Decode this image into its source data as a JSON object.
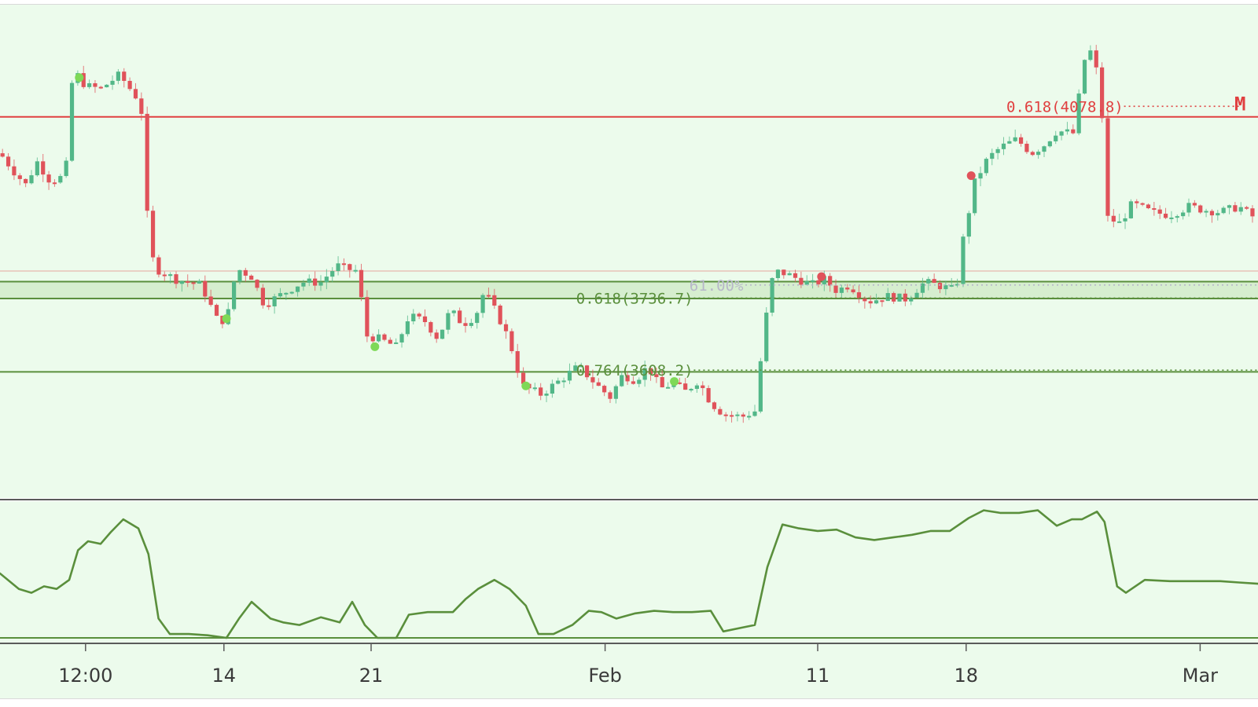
{
  "chart_data": [
    {
      "type": "candlestick",
      "colors": {
        "background": "#ecfbec",
        "up": "#52b788",
        "down": "#e0525a",
        "resistance": "#e04040",
        "support": "#5a8f3c",
        "zone_fill": "#cfe9c6",
        "marker_green": "#7ed957",
        "marker_red": "#e0525a"
      },
      "ylim": [
        3380,
        4260
      ],
      "x_ticks": [
        {
          "label": "12:00",
          "t": 0.068
        },
        {
          "label": "14",
          "t": 0.178
        },
        {
          "label": "21",
          "t": 0.295
        },
        {
          "label": "Feb",
          "t": 0.481
        },
        {
          "label": "11",
          "t": 0.65
        },
        {
          "label": "18",
          "t": 0.768
        },
        {
          "label": "Mar",
          "t": 0.954
        }
      ],
      "close_path": [
        [
          0.0,
          3995
        ],
        [
          0.012,
          3960
        ],
        [
          0.022,
          3935
        ],
        [
          0.028,
          3985
        ],
        [
          0.04,
          3945
        ],
        [
          0.052,
          3955
        ],
        [
          0.058,
          4145
        ],
        [
          0.068,
          4115
        ],
        [
          0.08,
          4110
        ],
        [
          0.095,
          4135
        ],
        [
          0.105,
          4105
        ],
        [
          0.112,
          4085
        ],
        [
          0.118,
          3845
        ],
        [
          0.123,
          3790
        ],
        [
          0.14,
          3770
        ],
        [
          0.16,
          3760
        ],
        [
          0.172,
          3700
        ],
        [
          0.18,
          3695
        ],
        [
          0.188,
          3790
        ],
        [
          0.2,
          3775
        ],
        [
          0.21,
          3725
        ],
        [
          0.225,
          3745
        ],
        [
          0.24,
          3765
        ],
        [
          0.255,
          3765
        ],
        [
          0.268,
          3795
        ],
        [
          0.272,
          3790
        ],
        [
          0.285,
          3785
        ],
        [
          0.29,
          3670
        ],
        [
          0.3,
          3665
        ],
        [
          0.315,
          3650
        ],
        [
          0.325,
          3705
        ],
        [
          0.338,
          3695
        ],
        [
          0.348,
          3665
        ],
        [
          0.358,
          3715
        ],
        [
          0.368,
          3690
        ],
        [
          0.378,
          3705
        ],
        [
          0.385,
          3750
        ],
        [
          0.398,
          3695
        ],
        [
          0.405,
          3660
        ],
        [
          0.415,
          3580
        ],
        [
          0.43,
          3565
        ],
        [
          0.445,
          3590
        ],
        [
          0.46,
          3615
        ],
        [
          0.475,
          3580
        ],
        [
          0.485,
          3560
        ],
        [
          0.495,
          3600
        ],
        [
          0.505,
          3590
        ],
        [
          0.515,
          3615
        ],
        [
          0.525,
          3575
        ],
        [
          0.535,
          3585
        ],
        [
          0.545,
          3570
        ],
        [
          0.555,
          3590
        ],
        [
          0.565,
          3550
        ],
        [
          0.575,
          3530
        ],
        [
          0.59,
          3525
        ],
        [
          0.6,
          3535
        ],
        [
          0.608,
          3690
        ],
        [
          0.615,
          3785
        ],
        [
          0.625,
          3780
        ],
        [
          0.635,
          3770
        ],
        [
          0.645,
          3760
        ],
        [
          0.655,
          3770
        ],
        [
          0.665,
          3750
        ],
        [
          0.675,
          3760
        ],
        [
          0.69,
          3730
        ],
        [
          0.705,
          3740
        ],
        [
          0.72,
          3735
        ],
        [
          0.735,
          3765
        ],
        [
          0.745,
          3760
        ],
        [
          0.76,
          3750
        ],
        [
          0.765,
          3835
        ],
        [
          0.775,
          3945
        ],
        [
          0.785,
          3985
        ],
        [
          0.795,
          4005
        ],
        [
          0.808,
          4020
        ],
        [
          0.82,
          3995
        ],
        [
          0.83,
          4010
        ],
        [
          0.84,
          4035
        ],
        [
          0.855,
          4030
        ],
        [
          0.86,
          4155
        ],
        [
          0.868,
          4180
        ],
        [
          0.875,
          4105
        ],
        [
          0.88,
          3880
        ],
        [
          0.89,
          3870
        ],
        [
          0.9,
          3905
        ],
        [
          0.915,
          3890
        ],
        [
          0.93,
          3885
        ],
        [
          0.945,
          3900
        ],
        [
          0.955,
          3895
        ],
        [
          0.97,
          3890
        ],
        [
          0.985,
          3900
        ],
        [
          1.0,
          3875
        ]
      ],
      "signal_markers": [
        {
          "t": 0.063,
          "price": 4130,
          "kind": "buy"
        },
        {
          "t": 0.18,
          "price": 3700,
          "kind": "buy"
        },
        {
          "t": 0.298,
          "price": 3650,
          "kind": "buy"
        },
        {
          "t": 0.418,
          "price": 3580,
          "kind": "buy"
        },
        {
          "t": 0.536,
          "price": 3588,
          "kind": "buy"
        },
        {
          "t": 0.653,
          "price": 3775,
          "kind": "sell"
        },
        {
          "t": 0.772,
          "price": 3955,
          "kind": "sell"
        }
      ],
      "levels": [
        {
          "name": "resistance",
          "price": 4060,
          "style": "solid",
          "color_key": "resistance"
        },
        {
          "name": "zone_top",
          "price": 3766,
          "style": "solid",
          "color_key": "support"
        },
        {
          "name": "zone_bottom",
          "price": 3736,
          "style": "solid",
          "color_key": "support"
        },
        {
          "name": "support",
          "price": 3605,
          "style": "solid",
          "color_key": "support"
        },
        {
          "name": "thin_ref",
          "price": 3785,
          "style": "thin",
          "color_key": "resistance"
        }
      ],
      "annotations": [
        {
          "name": "fib-0618-upper",
          "text": "0.618(4078.8)",
          "price": 4078.8,
          "t_start": 0.8,
          "t_end": 0.985,
          "color_key": "resistance"
        },
        {
          "name": "fib-0618-lower",
          "text": "0.618(3736.7)",
          "price": 3736.7,
          "t_start": 0.458,
          "t_end": 1.0,
          "color_key": "support"
        },
        {
          "name": "fib-0764",
          "text": "0.764(3608.2)",
          "price": 3608.2,
          "t_start": 0.458,
          "t_end": 1.0,
          "color_key": "support"
        },
        {
          "name": "fib-pct-6100",
          "text": "61.00%",
          "price": 3760,
          "t_start": 0.548,
          "t_end": 1.0,
          "color_key": "muted"
        }
      ],
      "edge_label": {
        "text": "M",
        "color_key": "resistance"
      }
    },
    {
      "type": "line",
      "name": "oscillator",
      "ylim": [
        0,
        100
      ],
      "baseline": 0,
      "series": [
        {
          "points": [
            [
              0.0,
              50
            ],
            [
              0.015,
              38
            ],
            [
              0.025,
              35
            ],
            [
              0.035,
              40
            ],
            [
              0.045,
              38
            ],
            [
              0.055,
              45
            ],
            [
              0.062,
              68
            ],
            [
              0.07,
              75
            ],
            [
              0.08,
              73
            ],
            [
              0.088,
              82
            ],
            [
              0.098,
              92
            ],
            [
              0.11,
              85
            ],
            [
              0.118,
              65
            ],
            [
              0.126,
              15
            ],
            [
              0.135,
              3
            ],
            [
              0.15,
              3
            ],
            [
              0.165,
              2
            ],
            [
              0.18,
              0
            ],
            [
              0.19,
              15
            ],
            [
              0.2,
              28
            ],
            [
              0.215,
              15
            ],
            [
              0.225,
              12
            ],
            [
              0.238,
              10
            ],
            [
              0.255,
              16
            ],
            [
              0.27,
              12
            ],
            [
              0.28,
              28
            ],
            [
              0.29,
              10
            ],
            [
              0.3,
              0
            ],
            [
              0.315,
              0
            ],
            [
              0.325,
              18
            ],
            [
              0.34,
              20
            ],
            [
              0.36,
              20
            ],
            [
              0.37,
              30
            ],
            [
              0.38,
              38
            ],
            [
              0.393,
              45
            ],
            [
              0.405,
              38
            ],
            [
              0.418,
              25
            ],
            [
              0.428,
              3
            ],
            [
              0.44,
              3
            ],
            [
              0.455,
              10
            ],
            [
              0.468,
              21
            ],
            [
              0.478,
              20
            ],
            [
              0.49,
              15
            ],
            [
              0.505,
              19
            ],
            [
              0.52,
              21
            ],
            [
              0.535,
              20
            ],
            [
              0.55,
              20
            ],
            [
              0.565,
              21
            ],
            [
              0.575,
              5
            ],
            [
              0.59,
              8
            ],
            [
              0.6,
              10
            ],
            [
              0.61,
              55
            ],
            [
              0.622,
              88
            ],
            [
              0.635,
              85
            ],
            [
              0.65,
              83
            ],
            [
              0.665,
              84
            ],
            [
              0.68,
              78
            ],
            [
              0.695,
              76
            ],
            [
              0.71,
              78
            ],
            [
              0.725,
              80
            ],
            [
              0.74,
              83
            ],
            [
              0.755,
              83
            ],
            [
              0.77,
              93
            ],
            [
              0.782,
              99
            ],
            [
              0.795,
              97
            ],
            [
              0.81,
              97
            ],
            [
              0.825,
              99
            ],
            [
              0.84,
              87
            ],
            [
              0.852,
              92
            ],
            [
              0.86,
              92
            ],
            [
              0.872,
              98
            ],
            [
              0.878,
              90
            ],
            [
              0.888,
              40
            ],
            [
              0.895,
              35
            ],
            [
              0.91,
              45
            ],
            [
              0.93,
              44
            ],
            [
              0.95,
              44
            ],
            [
              0.97,
              44
            ],
            [
              0.985,
              43
            ],
            [
              1.0,
              42
            ]
          ]
        }
      ]
    }
  ]
}
